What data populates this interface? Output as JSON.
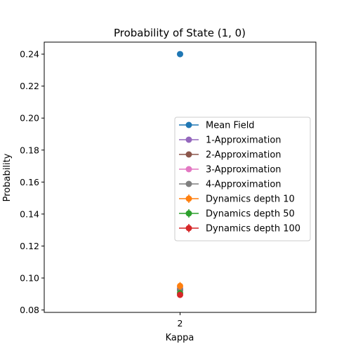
{
  "chart_data": {
    "type": "scatter",
    "title": "Probability of State (1, 0)",
    "xlabel": "Kappa",
    "ylabel": "Probability",
    "x_ticks": [
      "2"
    ],
    "y_ticks": [
      "0.08",
      "0.10",
      "0.12",
      "0.14",
      "0.16",
      "0.18",
      "0.20",
      "0.22",
      "0.24"
    ],
    "ylim": [
      0.0785,
      0.2475
    ],
    "legend_position": "center-right",
    "grid": false,
    "series": [
      {
        "name": "Mean Field",
        "color": "#1f77b4",
        "x": 2,
        "y": 0.24,
        "error": 0
      },
      {
        "name": "1-Approximation",
        "color": "#9467bd",
        "x": 2,
        "y": 0.0935,
        "error": 0
      },
      {
        "name": "2-Approximation",
        "color": "#8c564b",
        "x": 2,
        "y": 0.0925,
        "error": 0
      },
      {
        "name": "3-Approximation",
        "color": "#e377c2",
        "x": 2,
        "y": 0.0925,
        "error": 0
      },
      {
        "name": "4-Approximation",
        "color": "#7f7f7f",
        "x": 2,
        "y": 0.0925,
        "error": 0
      },
      {
        "name": "Dynamics depth 10",
        "color": "#ff7f0e",
        "x": 2,
        "y": 0.095,
        "error": 0.0025
      },
      {
        "name": "Dynamics depth 50",
        "color": "#2ca02c",
        "x": 2,
        "y": 0.0905,
        "error": 0.002
      },
      {
        "name": "Dynamics depth 100",
        "color": "#d62728",
        "x": 2,
        "y": 0.0895,
        "error": 0.002
      }
    ]
  }
}
